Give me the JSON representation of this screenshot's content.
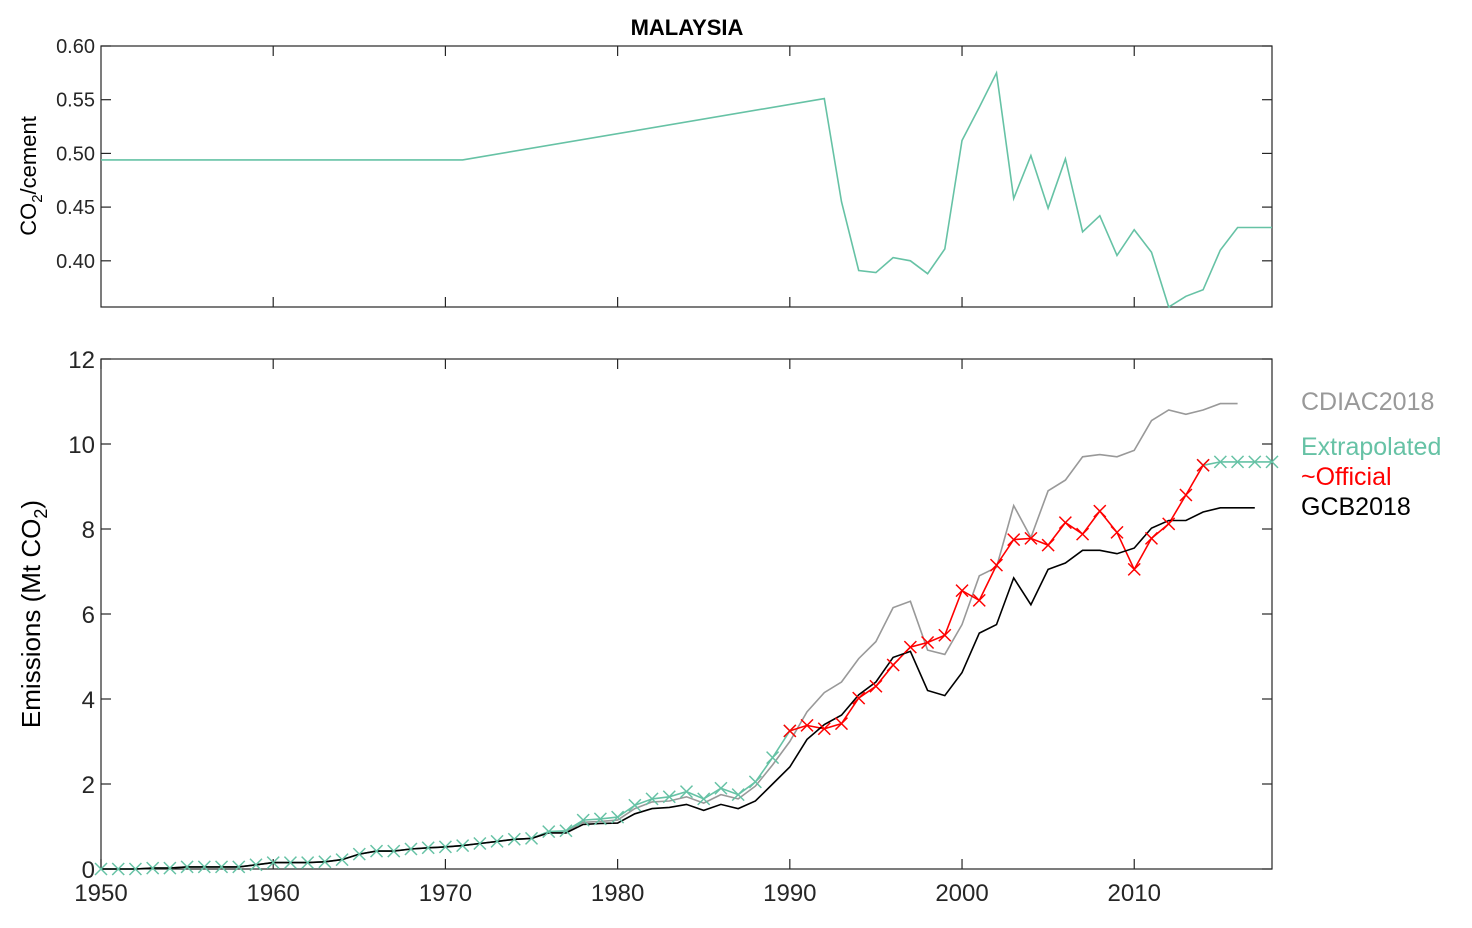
{
  "chart_data": [
    {
      "type": "line",
      "title": "MALAYSIA",
      "ylabel": "CO2/cement",
      "ylabel_main": "CO",
      "ylabel_sub": "2",
      "ylabel_rest": "/cement",
      "xlim": [
        1950,
        2018
      ],
      "ylim": [
        0.357,
        0.6
      ],
      "yticks": [
        0.4,
        0.45,
        0.5,
        0.55,
        0.6
      ],
      "ytick_labels": [
        "0.40",
        "0.45",
        "0.50",
        "0.55",
        "0.60"
      ],
      "xticks": [
        1960,
        1970,
        1980,
        1990,
        2000,
        2010
      ],
      "series": [
        {
          "name": "CO2/cement",
          "color": "#66c2a5",
          "x": [
            1950,
            1971,
            1992,
            1993,
            1994,
            1995,
            1996,
            1997,
            1998,
            1999,
            2000,
            2001,
            2002,
            2003,
            2004,
            2005,
            2006,
            2007,
            2008,
            2009,
            2010,
            2011,
            2012,
            2013,
            2014,
            2015,
            2016,
            2017,
            2018
          ],
          "y": [
            0.494,
            0.494,
            0.551,
            0.455,
            0.391,
            0.389,
            0.403,
            0.4,
            0.388,
            0.411,
            0.512,
            0.543,
            0.575,
            0.458,
            0.498,
            0.449,
            0.495,
            0.427,
            0.442,
            0.405,
            0.429,
            0.408,
            0.357,
            0.367,
            0.373,
            0.41,
            0.431,
            0.431,
            0.431
          ]
        }
      ]
    },
    {
      "type": "line",
      "ylabel": "Emissions (Mt CO2)",
      "ylabel_main": "Emissions (Mt CO",
      "ylabel_sub": "2",
      "ylabel_end": ")",
      "xlim": [
        1950,
        2018
      ],
      "ylim": [
        0,
        12
      ],
      "xticks": [
        1950,
        1960,
        1970,
        1980,
        1990,
        2000,
        2010
      ],
      "xtick_labels": [
        "1950",
        "1960",
        "1970",
        "1980",
        "1990",
        "2000",
        "2010"
      ],
      "yticks": [
        0,
        2,
        4,
        6,
        8,
        10,
        12
      ],
      "ytick_labels": [
        "0",
        "2",
        "4",
        "6",
        "8",
        "10",
        "12"
      ],
      "legend_placement": "outside-right",
      "series": [
        {
          "name": "CDIAC2018",
          "color": "#999999",
          "marker": "none",
          "x": [
            1950,
            1951,
            1952,
            1953,
            1954,
            1955,
            1956,
            1957,
            1958,
            1959,
            1960,
            1961,
            1962,
            1963,
            1964,
            1965,
            1966,
            1967,
            1968,
            1969,
            1970,
            1971,
            1972,
            1973,
            1974,
            1975,
            1976,
            1977,
            1978,
            1979,
            1980,
            1981,
            1982,
            1983,
            1984,
            1985,
            1986,
            1987,
            1988,
            1989,
            1990,
            1991,
            1992,
            1993,
            1994,
            1995,
            1996,
            1997,
            1998,
            1999,
            2000,
            2001,
            2002,
            2003,
            2004,
            2005,
            2006,
            2007,
            2008,
            2009,
            2010,
            2011,
            2012,
            2013,
            2014,
            2015,
            2016
          ],
          "y": [
            0,
            0,
            0,
            0.02,
            0.02,
            0.05,
            0.05,
            0.05,
            0.05,
            0.1,
            0.15,
            0.15,
            0.15,
            0.17,
            0.22,
            0.35,
            0.42,
            0.42,
            0.47,
            0.5,
            0.52,
            0.55,
            0.6,
            0.65,
            0.7,
            0.72,
            0.86,
            0.88,
            1.1,
            1.12,
            1.15,
            1.42,
            1.58,
            1.6,
            1.7,
            1.55,
            1.75,
            1.65,
            1.95,
            2.45,
            3.0,
            3.7,
            4.15,
            4.4,
            4.95,
            5.35,
            6.15,
            6.3,
            5.15,
            5.05,
            5.75,
            6.9,
            7.1,
            8.55,
            7.8,
            8.9,
            9.15,
            9.7,
            9.75,
            9.7,
            9.85,
            10.55,
            10.8,
            10.7,
            10.8,
            10.95,
            10.95
          ]
        },
        {
          "name": "Extrapolated",
          "color": "#66c2a5",
          "marker": "x",
          "segments": [
            {
              "x": [
                1950,
                1951,
                1952,
                1953,
                1954,
                1955,
                1956,
                1957,
                1958,
                1959,
                1960,
                1961,
                1962,
                1963,
                1964,
                1965,
                1966,
                1967,
                1968,
                1969,
                1970,
                1971,
                1972,
                1973,
                1974,
                1975,
                1976,
                1977,
                1978,
                1979,
                1980,
                1981,
                1982,
                1983,
                1984,
                1985,
                1986,
                1987,
                1988,
                1989,
                1990
              ],
              "y": [
                0,
                0,
                0,
                0.02,
                0.02,
                0.05,
                0.05,
                0.05,
                0.05,
                0.1,
                0.15,
                0.15,
                0.15,
                0.17,
                0.22,
                0.35,
                0.42,
                0.42,
                0.47,
                0.5,
                0.52,
                0.55,
                0.6,
                0.65,
                0.7,
                0.72,
                0.88,
                0.9,
                1.15,
                1.18,
                1.22,
                1.5,
                1.65,
                1.7,
                1.82,
                1.65,
                1.9,
                1.75,
                2.05,
                2.62,
                3.25
              ]
            },
            {
              "x": [
                2014,
                2015,
                2016,
                2017,
                2018
              ],
              "y": [
                9.5,
                9.58,
                9.58,
                9.58,
                9.58
              ]
            }
          ]
        },
        {
          "name": "~Official",
          "color": "#ff0000",
          "marker": "x",
          "x": [
            1990,
            1991,
            1992,
            1993,
            1994,
            1995,
            1996,
            1997,
            1998,
            1999,
            2000,
            2001,
            2002,
            2003,
            2004,
            2005,
            2006,
            2007,
            2008,
            2009,
            2010,
            2011,
            2012,
            2013,
            2014
          ],
          "y": [
            3.25,
            3.38,
            3.3,
            3.42,
            4.02,
            4.3,
            4.8,
            5.22,
            5.33,
            5.5,
            6.55,
            6.32,
            7.15,
            7.75,
            7.78,
            7.62,
            8.15,
            7.88,
            8.42,
            7.92,
            7.05,
            7.78,
            8.12,
            8.8,
            9.5
          ]
        },
        {
          "name": "GCB2018",
          "color": "#000000",
          "marker": "none",
          "x": [
            1950,
            1951,
            1952,
            1953,
            1954,
            1955,
            1956,
            1957,
            1958,
            1959,
            1960,
            1961,
            1962,
            1963,
            1964,
            1965,
            1966,
            1967,
            1968,
            1969,
            1970,
            1971,
            1972,
            1973,
            1974,
            1975,
            1976,
            1977,
            1978,
            1979,
            1980,
            1981,
            1982,
            1983,
            1984,
            1985,
            1986,
            1987,
            1988,
            1989,
            1990,
            1991,
            1992,
            1993,
            1994,
            1995,
            1996,
            1997,
            1998,
            1999,
            2000,
            2001,
            2002,
            2003,
            2004,
            2005,
            2006,
            2007,
            2008,
            2009,
            2010,
            2011,
            2012,
            2013,
            2014,
            2015,
            2016,
            2017
          ],
          "y": [
            0,
            0,
            0,
            0.02,
            0.02,
            0.05,
            0.05,
            0.05,
            0.05,
            0.1,
            0.15,
            0.15,
            0.15,
            0.17,
            0.22,
            0.35,
            0.42,
            0.42,
            0.47,
            0.5,
            0.52,
            0.55,
            0.6,
            0.65,
            0.7,
            0.72,
            0.85,
            0.85,
            1.05,
            1.07,
            1.08,
            1.3,
            1.42,
            1.45,
            1.52,
            1.38,
            1.52,
            1.42,
            1.6,
            2.0,
            2.4,
            3.05,
            3.4,
            3.62,
            4.1,
            4.4,
            4.98,
            5.12,
            4.2,
            4.08,
            4.62,
            5.55,
            5.75,
            6.85,
            6.22,
            7.05,
            7.2,
            7.5,
            7.5,
            7.42,
            7.55,
            8.02,
            8.2,
            8.2,
            8.4,
            8.5,
            8.5,
            8.5
          ]
        }
      ]
    }
  ]
}
